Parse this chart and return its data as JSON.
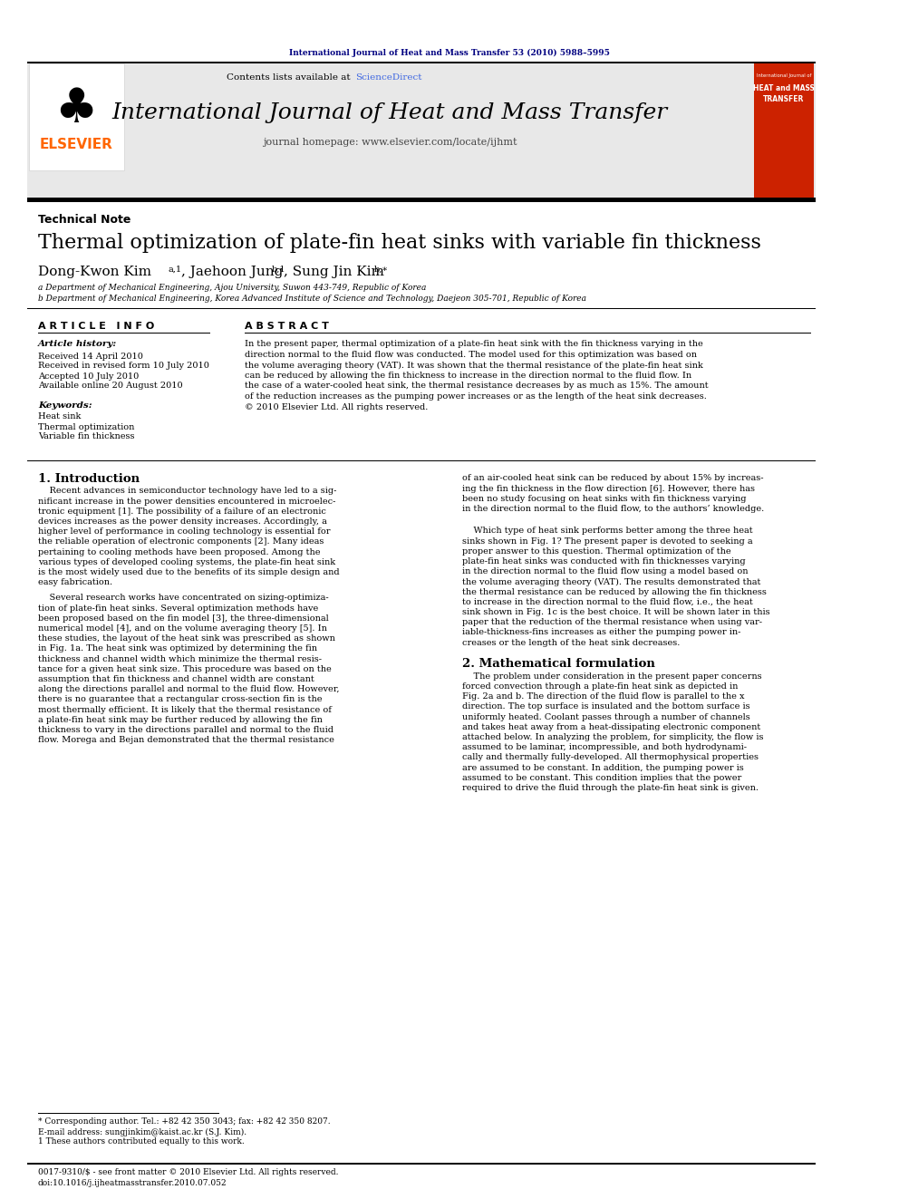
{
  "page_bg": "#ffffff",
  "top_journal_text": "International Journal of Heat and Mass Transfer 53 (2010) 5988–5995",
  "top_journal_color": "#000080",
  "header_bg": "#e8e8e8",
  "journal_title": "International Journal of Heat and Mass Transfer",
  "journal_homepage": "journal homepage: www.elsevier.com/locate/ijhmt",
  "contents_text": "Contents lists available at ",
  "sciencedirect_text": "ScienceDirect",
  "sciencedirect_color": "#4169e1",
  "elsevier_color": "#FF6600",
  "section_label": "Technical Note",
  "paper_title": "Thermal optimization of plate-fin heat sinks with variable fin thickness",
  "affil_a": "a Department of Mechanical Engineering, Ajou University, Suwon 443-749, Republic of Korea",
  "affil_b": "b Department of Mechanical Engineering, Korea Advanced Institute of Science and Technology, Daejeon 305-701, Republic of Korea",
  "article_info_header": "A R T I C L E   I N F O",
  "abstract_header": "A B S T R A C T",
  "article_history_label": "Article history:",
  "received_text": "Received 14 April 2010",
  "revised_text": "Received in revised form 10 July 2010",
  "accepted_text": "Accepted 10 July 2010",
  "available_text": "Available online 20 August 2010",
  "keywords_label": "Keywords:",
  "kw1": "Heat sink",
  "kw2": "Thermal optimization",
  "kw3": "Variable fin thickness",
  "intro_title": "1. Introduction",
  "math_title": "2. Mathematical formulation",
  "footnote1": "* Corresponding author. Tel.: +82 42 350 3043; fax: +82 42 350 8207.",
  "footnote2": "E-mail address: sungjinkim@kaist.ac.kr (S.J. Kim).",
  "footnote3": "1 These authors contributed equally to this work.",
  "bottom_text1": "0017-9310/$ - see front matter © 2010 Elsevier Ltd. All rights reserved.",
  "bottom_text2": "doi:10.1016/j.ijheatmasstransfer.2010.07.052",
  "cover_color": "#cc2200",
  "cover_line1": "International Journal of",
  "cover_line2": "HEAT and MASS",
  "cover_line3": "TRANSFER"
}
